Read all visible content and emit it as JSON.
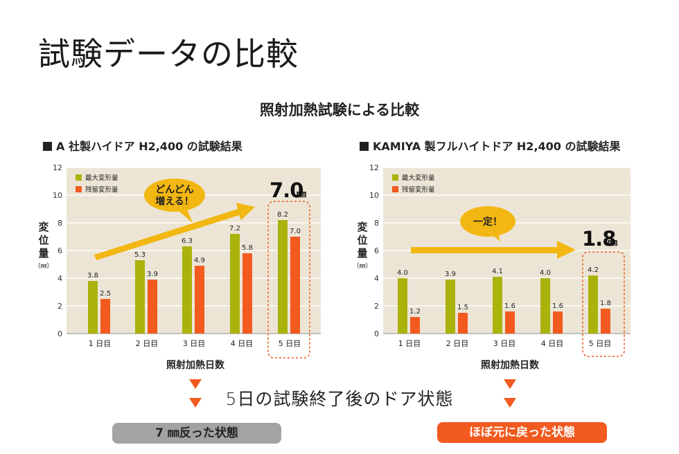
{
  "page_title": "試験データの比較",
  "section_title": "照射加熱試験による比較",
  "bottom_caption": "5日の試験終了後のドア状態",
  "pill_left": "7 ㎜反った状態",
  "pill_right": "ほぼ元に戻った状態",
  "colors": {
    "max": "#aab20c",
    "residual": "#f25a1f",
    "plot_bg": "#ece5d5",
    "arrow": "#f2b712",
    "highlight": "#f25a1f"
  },
  "chart_data": [
    {
      "type": "bar",
      "title": "A 社製ハイドア H2,400 の試験結果",
      "categories": [
        "1 日目",
        "2 日目",
        "3 日目",
        "4 日目",
        "5 日目"
      ],
      "series": [
        {
          "name": "最大変形量",
          "values": [
            3.8,
            5.3,
            6.3,
            7.2,
            8.2
          ],
          "labels": [
            "3.8",
            "5.3",
            "6.3",
            "7.2",
            "8.2"
          ]
        },
        {
          "name": "残留変形量",
          "values": [
            2.5,
            3.9,
            4.9,
            5.8,
            7.0
          ],
          "labels": [
            "2.5",
            "3.9",
            "4.9",
            "5.8",
            "7.0"
          ]
        }
      ],
      "xlabel": "照射加熱日数",
      "ylabel_chars": [
        "変",
        "位",
        "量"
      ],
      "ylabel_unit": "（㎜）",
      "ylim": [
        0,
        12
      ],
      "yticks": [
        "0",
        "2",
        "4",
        "6",
        "8",
        "10",
        "12"
      ],
      "grid": true,
      "legend": "top-left",
      "callout": "どんどん\n増える！",
      "highlight_value": "7.0",
      "highlight_unit": "㎜"
    },
    {
      "type": "bar",
      "title": "KAMIYA 製フルハイトドア H2,400 の試験結果",
      "categories": [
        "1 日目",
        "2 日目",
        "3 日目",
        "4 日目",
        "5 日目"
      ],
      "series": [
        {
          "name": "最大変形量",
          "values": [
            4.0,
            3.9,
            4.1,
            4.0,
            4.2
          ],
          "labels": [
            "4.0",
            "3.9",
            "4.1",
            "4.0",
            "4.2"
          ]
        },
        {
          "name": "残留変形量",
          "values": [
            1.2,
            1.5,
            1.6,
            1.6,
            1.8
          ],
          "labels": [
            "1.2",
            "1.5",
            "1.6",
            "1.6",
            "1.8"
          ]
        }
      ],
      "xlabel": "照射加熱日数",
      "ylabel_chars": [
        "変",
        "位",
        "量"
      ],
      "ylabel_unit": "（㎜）",
      "ylim": [
        0,
        12
      ],
      "yticks": [
        "0",
        "2",
        "4",
        "6",
        "8",
        "10",
        "12"
      ],
      "grid": true,
      "legend": "top-left",
      "callout": "一定！",
      "highlight_value": "1.8",
      "highlight_unit": "㎜"
    }
  ]
}
